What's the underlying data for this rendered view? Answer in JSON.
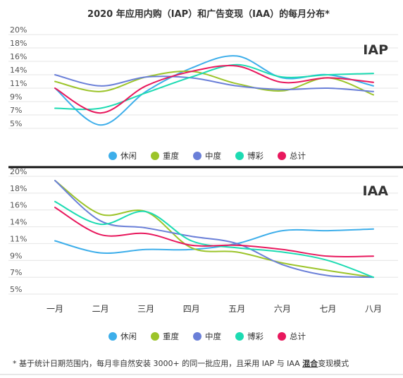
{
  "page": {
    "title": "2020 年应用内购（IAP）和广告变现（IAA）的每月分布*",
    "footnote_prefix": "* 基于统计日期范围内，每月非自然安装 3000+ 的同一批应用，且采用 IAP 与 IAA ",
    "footnote_emphasis": "混合",
    "footnote_suffix": "变现模式"
  },
  "legend": {
    "items": [
      {
        "label": "休闲",
        "color": "#3daeea"
      },
      {
        "label": "重度",
        "color": "#9cc42a"
      },
      {
        "label": "中度",
        "color": "#6a7fd8"
      },
      {
        "label": "博彩",
        "color": "#1cdbb2"
      },
      {
        "label": "总计",
        "color": "#e8185d"
      }
    ]
  },
  "chart_data": [
    {
      "type": "line",
      "panel_label": "IAP",
      "y_tick_labels": [
        "20%",
        "18%",
        "16%",
        "14%",
        "11%",
        "9%",
        "7%",
        "5%"
      ],
      "y_tick_values": [
        20,
        18,
        16,
        14,
        11,
        9,
        7,
        5
      ],
      "ylim": [
        5,
        20
      ],
      "categories": [
        "一月",
        "二月",
        "三月",
        "四月",
        "五月",
        "六月",
        "七月",
        "八月"
      ],
      "x_tick_labels_shown": false,
      "grid": "horizontal",
      "legend_position": "bottom",
      "series": [
        {
          "name": "休闲",
          "color": "#3daeea",
          "values": [
            11,
            5.5,
            10.5,
            15,
            16.8,
            13.3,
            14,
            11.5
          ]
        },
        {
          "name": "重度",
          "color": "#9cc42a",
          "values": [
            12.5,
            10.5,
            13.5,
            14.5,
            12,
            10.6,
            13.3,
            10
          ]
        },
        {
          "name": "中度",
          "color": "#6a7fd8",
          "values": [
            14,
            11.5,
            13.5,
            13.3,
            11.5,
            10.8,
            11,
            10.5
          ]
        },
        {
          "name": "博彩",
          "color": "#1cdbb2",
          "values": [
            8,
            8,
            10.3,
            13.5,
            15.5,
            13.5,
            14,
            14.2
          ]
        },
        {
          "name": "总计",
          "color": "#e8185d",
          "values": [
            11,
            7.3,
            11.5,
            14.5,
            15.3,
            12.3,
            13.3,
            12.3
          ]
        }
      ]
    },
    {
      "type": "line",
      "panel_label": "IAA",
      "y_tick_labels": [
        "20%",
        "18%",
        "16%",
        "14%",
        "11%",
        "9%",
        "7%",
        "5%"
      ],
      "y_tick_values": [
        20,
        18,
        16,
        14,
        11,
        9,
        7,
        5
      ],
      "ylim": [
        5,
        20
      ],
      "categories": [
        "一月",
        "二月",
        "三月",
        "四月",
        "五月",
        "六月",
        "七月",
        "八月"
      ],
      "x_tick_labels_shown": true,
      "grid": "horizontal",
      "legend_position": "bottom",
      "series": [
        {
          "name": "休闲",
          "color": "#3daeea",
          "values": [
            11.5,
            9.9,
            10.3,
            10.3,
            11,
            13.3,
            13.3,
            13.6
          ]
        },
        {
          "name": "重度",
          "color": "#9cc42a",
          "values": [
            19.5,
            15.5,
            15.8,
            10.5,
            10,
            8.7,
            7.8,
            7
          ]
        },
        {
          "name": "中度",
          "color": "#6a7fd8",
          "values": [
            19.5,
            14.7,
            13.8,
            12.3,
            11,
            8.5,
            7.2,
            7
          ]
        },
        {
          "name": "博彩",
          "color": "#1cdbb2",
          "values": [
            17,
            14.3,
            15.8,
            11.5,
            10.5,
            10,
            9,
            7
          ]
        },
        {
          "name": "总计",
          "color": "#e8185d",
          "values": [
            16.3,
            12.6,
            12.8,
            10.8,
            10.8,
            10.3,
            9.5,
            9.5
          ]
        }
      ]
    }
  ]
}
